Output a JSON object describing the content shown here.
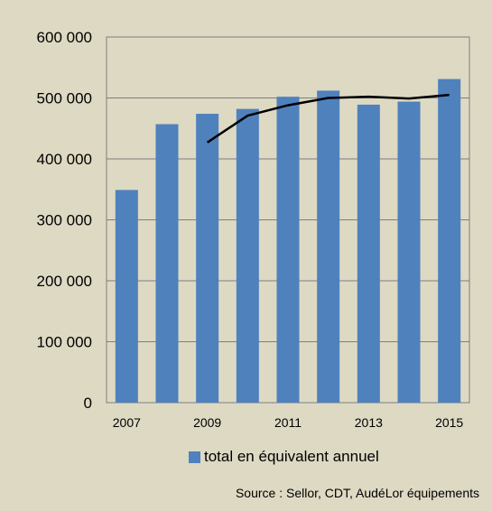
{
  "chart_data": {
    "type": "bar",
    "categories": [
      "2007",
      "2008",
      "2009",
      "2010",
      "2011",
      "2012",
      "2013",
      "2014",
      "2015"
    ],
    "x_tick_labels": [
      "2007",
      "2009",
      "2011",
      "2013",
      "2015"
    ],
    "series": [
      {
        "name": "total en équivalent annuel",
        "type": "bar",
        "color": "#4f81bd",
        "values": [
          349000,
          457000,
          474000,
          482000,
          502000,
          512000,
          489000,
          494000,
          531000
        ]
      },
      {
        "type": "line",
        "color": "#000000",
        "x": [
          "2009",
          "2010",
          "2011",
          "2012",
          "2013",
          "2014",
          "2015"
        ],
        "values": [
          427000,
          471000,
          488000,
          500000,
          502000,
          499000,
          505000
        ]
      }
    ],
    "y_ticks": [
      "0",
      "100 000",
      "200 000",
      "300 000",
      "400 000",
      "500 000",
      "600 000"
    ],
    "ylim": [
      0,
      600000
    ],
    "grid": true,
    "legend_position": "bottom",
    "source": "Source : Sellor, CDT, AudéLor équipements"
  }
}
